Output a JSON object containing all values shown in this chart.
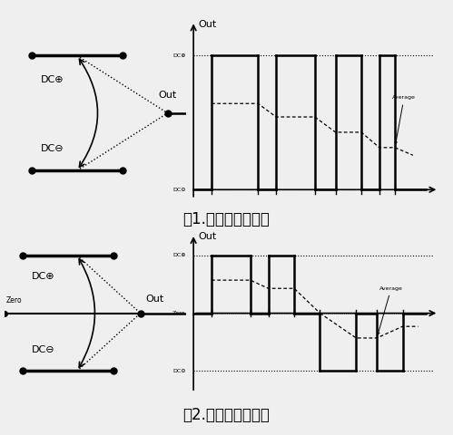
{
  "bg_color": "#efefef",
  "fig1_caption": "图1.两电平拓扑结构",
  "fig2_caption": "图2.三电平拓扑结构",
  "dc_plus": "DC⊕",
  "dc_minus": "DC⊖",
  "zero_label": "Zero",
  "out_label": "Out",
  "average_label": "Average",
  "caption_fontsize": 12,
  "label_fontsize": 8,
  "tick_fontsize": 5
}
